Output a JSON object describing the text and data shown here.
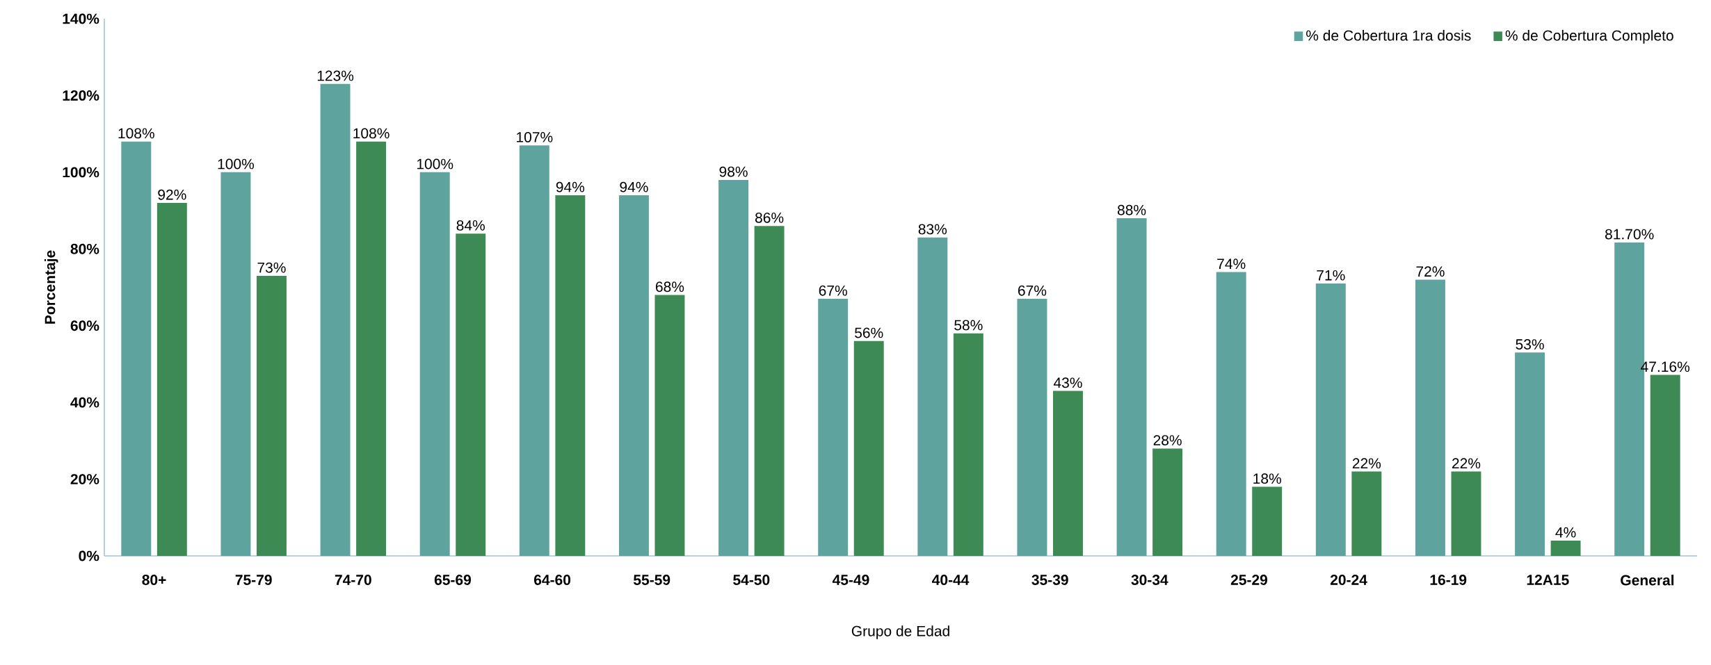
{
  "chart_data": {
    "type": "bar",
    "xlabel": "Grupo de Edad",
    "ylabel": "Porcentaje",
    "categories": [
      "80+",
      "75-79",
      "74-70",
      "65-69",
      "64-60",
      "55-59",
      "54-50",
      "45-49",
      "40-44",
      "35-39",
      "30-34",
      "25-29",
      "20-24",
      "16-19",
      "12A15",
      "General"
    ],
    "series": [
      {
        "name": "% de Cobertura 1ra dosis",
        "color": "#5fa39e",
        "values": [
          108,
          100,
          123,
          100,
          107,
          94,
          98,
          67,
          83,
          67,
          88,
          74,
          71,
          72,
          53,
          81.7
        ],
        "value_labels": [
          "108%",
          "100%",
          "123%",
          "100%",
          "107%",
          "94%",
          "98%",
          "67%",
          "83%",
          "67%",
          "88%",
          "74%",
          "71%",
          "72%",
          "53%",
          "81.70%"
        ]
      },
      {
        "name": "% de Cobertura Completo",
        "color": "#3e8a55",
        "values": [
          92,
          73,
          108,
          84,
          94,
          68,
          86,
          56,
          58,
          43,
          28,
          18,
          22,
          22,
          4,
          47.16
        ],
        "value_labels": [
          "92%",
          "73%",
          "108%",
          "84%",
          "94%",
          "68%",
          "86%",
          "56%",
          "58%",
          "43%",
          "28%",
          "18%",
          "22%",
          "22%",
          "4%",
          "47.16%"
        ]
      }
    ],
    "ylim": [
      0,
      140
    ],
    "yticks": [
      {
        "value": 0,
        "label": "0%"
      },
      {
        "value": 20,
        "label": "20%"
      },
      {
        "value": 40,
        "label": "40%"
      },
      {
        "value": 60,
        "label": "60%"
      },
      {
        "value": 80,
        "label": "80%"
      },
      {
        "value": 100,
        "label": "100%"
      },
      {
        "value": 120,
        "label": "120%"
      },
      {
        "value": 140,
        "label": "140%"
      }
    ],
    "grid": false,
    "legend": "top right"
  }
}
